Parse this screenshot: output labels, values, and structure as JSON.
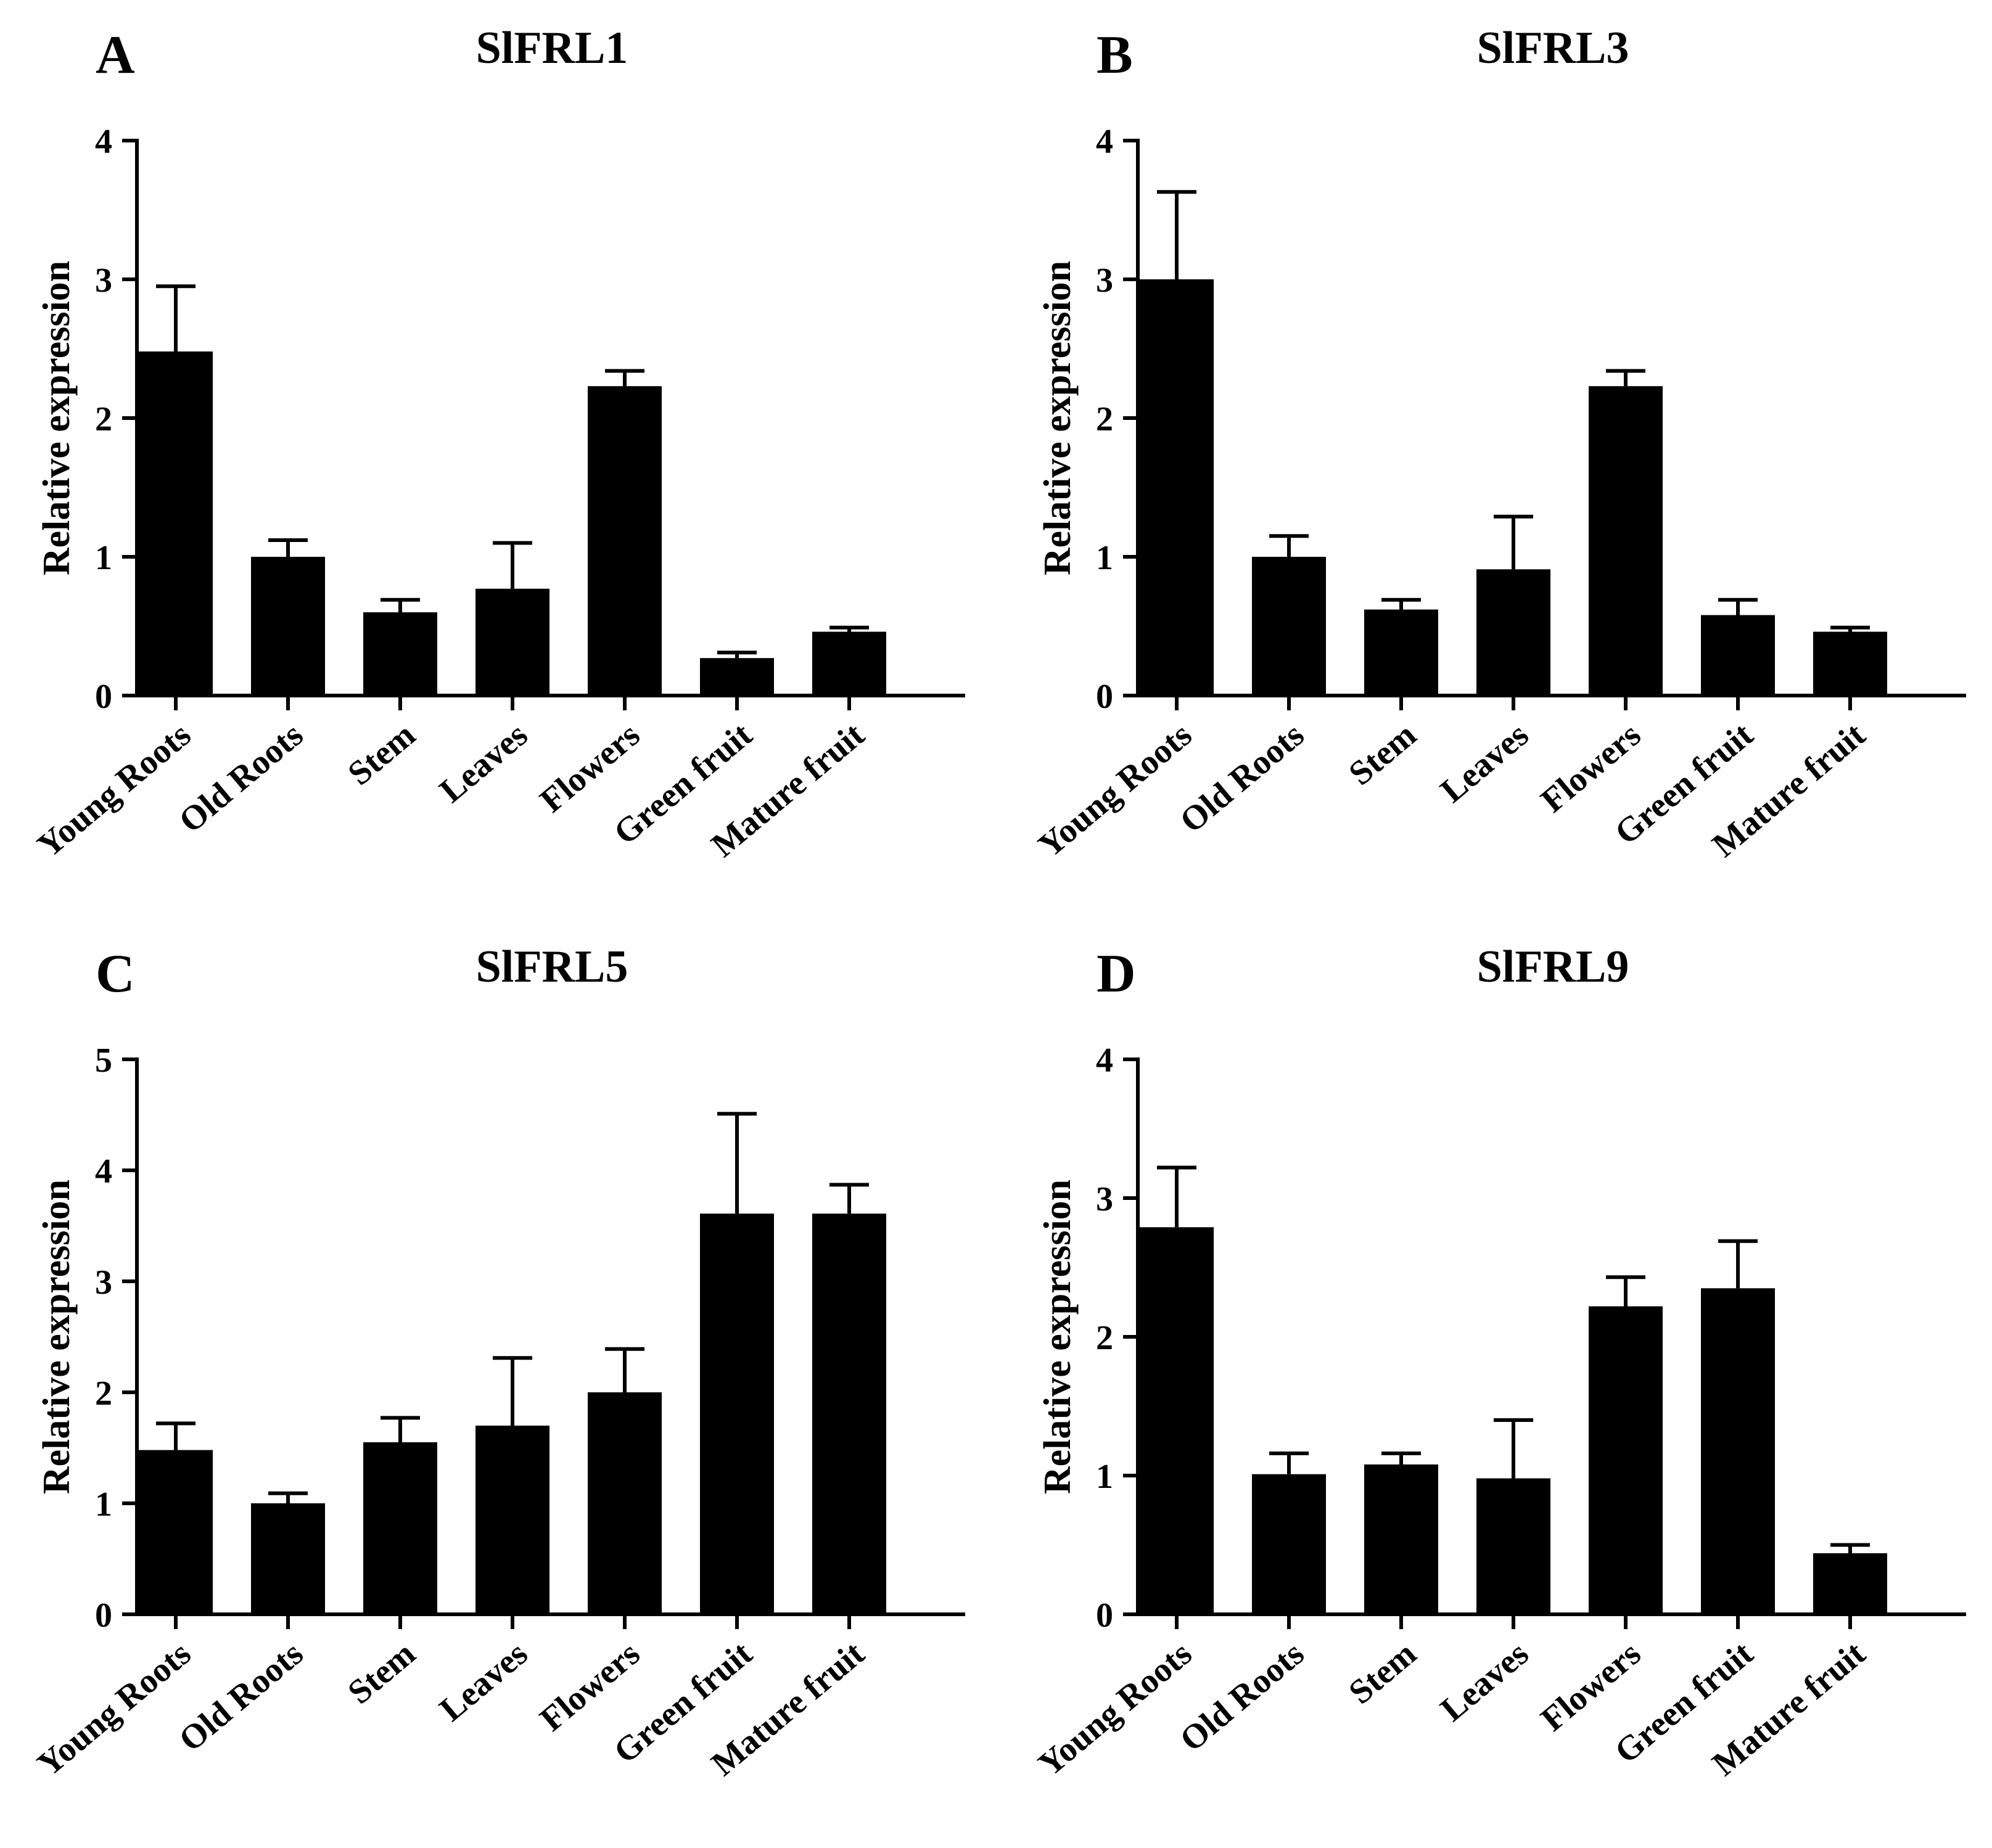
{
  "chart_data": [
    {
      "type": "bar",
      "panel": "A",
      "title": "SlFRL1",
      "ylabel": "Relative expression",
      "xlabel": "",
      "categories": [
        "Young Roots",
        "Old Roots",
        "Stem",
        "Leaves",
        "Flowers",
        "Green fruit",
        "Mature fruit"
      ],
      "values": [
        2.48,
        1.0,
        0.6,
        0.77,
        2.23,
        0.27,
        0.46
      ],
      "errors": [
        0.47,
        0.12,
        0.09,
        0.33,
        0.11,
        0.04,
        0.03
      ],
      "ylim": [
        0,
        4
      ],
      "yticks": [
        0,
        1,
        2,
        3,
        4
      ]
    },
    {
      "type": "bar",
      "panel": "B",
      "title": "SlFRL3",
      "ylabel": "Relative expression",
      "xlabel": "",
      "categories": [
        "Young Roots",
        "Old Roots",
        "Stem",
        "Leaves",
        "Flowers",
        "Green fruit",
        "Mature fruit"
      ],
      "values": [
        3.0,
        1.0,
        0.62,
        0.91,
        2.23,
        0.58,
        0.46
      ],
      "errors": [
        0.63,
        0.15,
        0.07,
        0.38,
        0.11,
        0.11,
        0.03
      ],
      "ylim": [
        0,
        4
      ],
      "yticks": [
        0,
        1,
        2,
        3,
        4
      ]
    },
    {
      "type": "bar",
      "panel": "C",
      "title": "SlFRL5",
      "ylabel": "Relative expression",
      "xlabel": "",
      "categories": [
        "Young Roots",
        "Old Roots",
        "Stem",
        "Leaves",
        "Flowers",
        "Green fruit",
        "Mature fruit"
      ],
      "values": [
        1.48,
        1.0,
        1.55,
        1.7,
        2.0,
        3.61,
        3.61
      ],
      "errors": [
        0.24,
        0.09,
        0.22,
        0.61,
        0.39,
        0.9,
        0.26
      ],
      "ylim": [
        0,
        5
      ],
      "yticks": [
        0,
        1,
        2,
        3,
        4,
        5
      ]
    },
    {
      "type": "bar",
      "panel": "D",
      "title": "SlFRL9",
      "ylabel": "Relative expression",
      "xlabel": "",
      "categories": [
        "Young Roots",
        "Old Roots",
        "Stem",
        "Leaves",
        "Flowers",
        "Green fruit",
        "Mature fruit"
      ],
      "values": [
        2.79,
        1.01,
        1.08,
        0.98,
        2.22,
        2.35,
        0.44
      ],
      "errors": [
        0.43,
        0.15,
        0.08,
        0.42,
        0.21,
        0.34,
        0.06
      ],
      "ylim": [
        0,
        4
      ],
      "yticks": [
        0,
        1,
        2,
        3,
        4
      ]
    }
  ]
}
